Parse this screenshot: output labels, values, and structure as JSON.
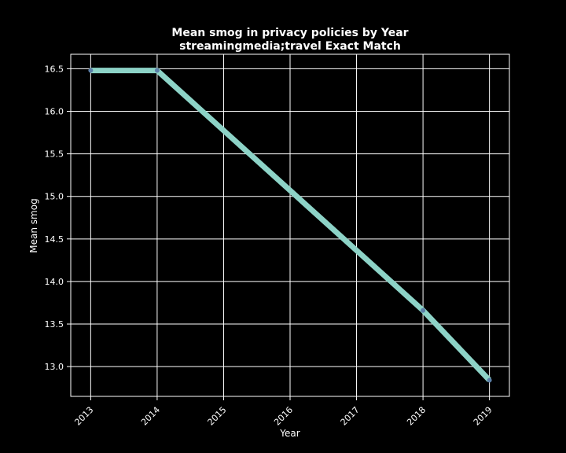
{
  "chart_data": {
    "type": "line",
    "title": "Mean smog in privacy policies by Year",
    "subtitle": "streamingmedia;travel Exact Match",
    "xlabel": "Year",
    "ylabel": "Mean smog",
    "x": [
      "2013",
      "2014",
      "2015",
      "2016",
      "2017",
      "2018",
      "2019"
    ],
    "series": [
      {
        "x": [
          "2013",
          "2014",
          "2018",
          "2019"
        ],
        "values": [
          16.48,
          16.48,
          13.66,
          12.84
        ]
      }
    ],
    "xlim": [
      2012.7,
      2019.3
    ],
    "ylim": [
      12.65,
      16.67
    ],
    "yticks": [
      "13.0",
      "13.5",
      "14.0",
      "14.5",
      "15.0",
      "15.5",
      "16.0",
      "16.5"
    ],
    "grid": true,
    "background": "#000000",
    "line_color": "#8dd3c7",
    "marker_color": "#5b7fa8",
    "axis_color": "#ffffff"
  }
}
